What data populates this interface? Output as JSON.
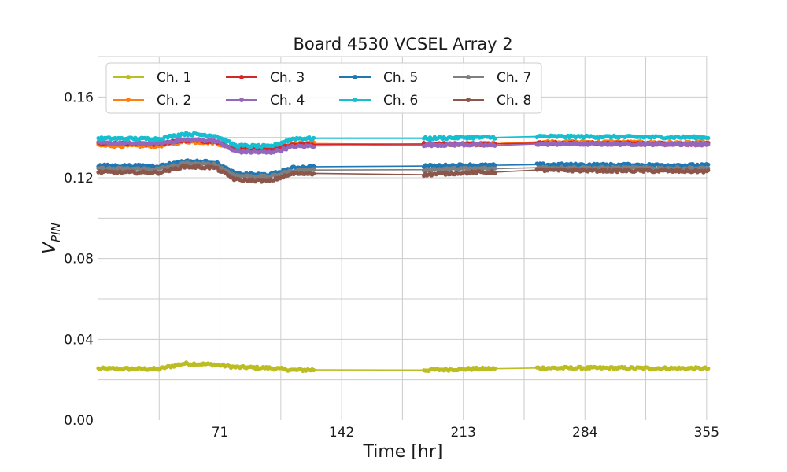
{
  "chart_data": {
    "type": "line",
    "title": "Board 4530 VCSEL Array 2",
    "xlabel": "Time [hr]",
    "ylabel_main": "V",
    "ylabel_sub": "PIN",
    "xlim": [
      0,
      356
    ],
    "ylim": [
      0,
      0.18
    ],
    "xticks": [
      71,
      142,
      213,
      284,
      355
    ],
    "xtick_labels": [
      "71",
      "142",
      "213",
      "284",
      "355"
    ],
    "yticks": [
      0.0,
      0.04,
      0.08,
      0.12,
      0.16
    ],
    "ytick_labels": [
      "0.00",
      "0.04",
      "0.08",
      "0.12",
      "0.16"
    ],
    "grid": true,
    "legend_position": "upper-left",
    "segments": [
      [
        0,
        80
      ],
      [
        80,
        114
      ],
      [
        114,
        126
      ],
      [
        190,
        232
      ],
      [
        256,
        356
      ]
    ],
    "series": [
      {
        "name": "Ch. 1",
        "color": "#bcbd22",
        "points": [
          [
            0,
            0.0255
          ],
          [
            35,
            0.0253
          ],
          [
            50,
            0.028
          ],
          [
            68,
            0.0275
          ],
          [
            80,
            0.0262
          ],
          [
            100,
            0.0258
          ],
          [
            114,
            0.0248
          ],
          [
            126,
            0.0249
          ],
          [
            190,
            0.0248
          ],
          [
            213,
            0.0253
          ],
          [
            232,
            0.0255
          ],
          [
            256,
            0.0258
          ],
          [
            300,
            0.0258
          ],
          [
            356,
            0.0256
          ]
        ]
      },
      {
        "name": "Ch. 2",
        "color": "#ff7f0e",
        "points": [
          [
            0,
            0.136
          ],
          [
            35,
            0.1358
          ],
          [
            50,
            0.138
          ],
          [
            68,
            0.1375
          ],
          [
            80,
            0.134
          ],
          [
            100,
            0.1335
          ],
          [
            114,
            0.137
          ],
          [
            126,
            0.137
          ],
          [
            190,
            0.1365
          ],
          [
            213,
            0.1368
          ],
          [
            232,
            0.137
          ],
          [
            256,
            0.1378
          ],
          [
            300,
            0.1376
          ],
          [
            356,
            0.1372
          ]
        ]
      },
      {
        "name": "Ch. 3",
        "color": "#d62728",
        "points": [
          [
            0,
            0.137
          ],
          [
            35,
            0.1368
          ],
          [
            50,
            0.1385
          ],
          [
            68,
            0.138
          ],
          [
            80,
            0.1345
          ],
          [
            100,
            0.134
          ],
          [
            114,
            0.1365
          ],
          [
            126,
            0.1365
          ],
          [
            190,
            0.1368
          ],
          [
            213,
            0.1368
          ],
          [
            232,
            0.1368
          ],
          [
            256,
            0.1372
          ],
          [
            300,
            0.137
          ],
          [
            356,
            0.1368
          ]
        ]
      },
      {
        "name": "Ch. 4",
        "color": "#9467bd",
        "points": [
          [
            0,
            0.1372
          ],
          [
            35,
            0.137
          ],
          [
            50,
            0.1388
          ],
          [
            68,
            0.1385
          ],
          [
            80,
            0.133
          ],
          [
            100,
            0.1325
          ],
          [
            114,
            0.1355
          ],
          [
            126,
            0.1358
          ],
          [
            190,
            0.1362
          ],
          [
            213,
            0.1365
          ],
          [
            232,
            0.136
          ],
          [
            256,
            0.1368
          ],
          [
            300,
            0.1368
          ],
          [
            356,
            0.1366
          ]
        ]
      },
      {
        "name": "Ch. 5",
        "color": "#1f77b4",
        "points": [
          [
            0,
            0.126
          ],
          [
            35,
            0.1258
          ],
          [
            50,
            0.1282
          ],
          [
            68,
            0.1278
          ],
          [
            80,
            0.122
          ],
          [
            100,
            0.1215
          ],
          [
            114,
            0.125
          ],
          [
            126,
            0.1255
          ],
          [
            190,
            0.1258
          ],
          [
            213,
            0.1262
          ],
          [
            232,
            0.1262
          ],
          [
            256,
            0.1265
          ],
          [
            300,
            0.1264
          ],
          [
            356,
            0.1262
          ]
        ]
      },
      {
        "name": "Ch. 6",
        "color": "#17becf",
        "points": [
          [
            0,
            0.1395
          ],
          [
            35,
            0.1393
          ],
          [
            50,
            0.1418
          ],
          [
            68,
            0.141
          ],
          [
            80,
            0.136
          ],
          [
            100,
            0.1355
          ],
          [
            114,
            0.1395
          ],
          [
            126,
            0.1395
          ],
          [
            190,
            0.1395
          ],
          [
            213,
            0.14
          ],
          [
            232,
            0.14
          ],
          [
            256,
            0.1405
          ],
          [
            300,
            0.1403
          ],
          [
            356,
            0.14
          ]
        ]
      },
      {
        "name": "Ch. 7",
        "color": "#7f7f7f",
        "points": [
          [
            0,
            0.1245
          ],
          [
            35,
            0.1243
          ],
          [
            50,
            0.127
          ],
          [
            68,
            0.1265
          ],
          [
            80,
            0.121
          ],
          [
            100,
            0.1205
          ],
          [
            114,
            0.1235
          ],
          [
            126,
            0.1238
          ],
          [
            190,
            0.124
          ],
          [
            213,
            0.1245
          ],
          [
            232,
            0.1245
          ],
          [
            256,
            0.125
          ],
          [
            300,
            0.1248
          ],
          [
            356,
            0.1246
          ]
        ]
      },
      {
        "name": "Ch. 8",
        "color": "#8c564b",
        "points": [
          [
            0,
            0.1228
          ],
          [
            35,
            0.1225
          ],
          [
            50,
            0.1255
          ],
          [
            68,
            0.125
          ],
          [
            80,
            0.119
          ],
          [
            100,
            0.1185
          ],
          [
            114,
            0.122
          ],
          [
            126,
            0.1222
          ],
          [
            190,
            0.1215
          ],
          [
            213,
            0.1225
          ],
          [
            232,
            0.1228
          ],
          [
            256,
            0.1238
          ],
          [
            300,
            0.1235
          ],
          [
            356,
            0.1232
          ]
        ]
      }
    ]
  }
}
